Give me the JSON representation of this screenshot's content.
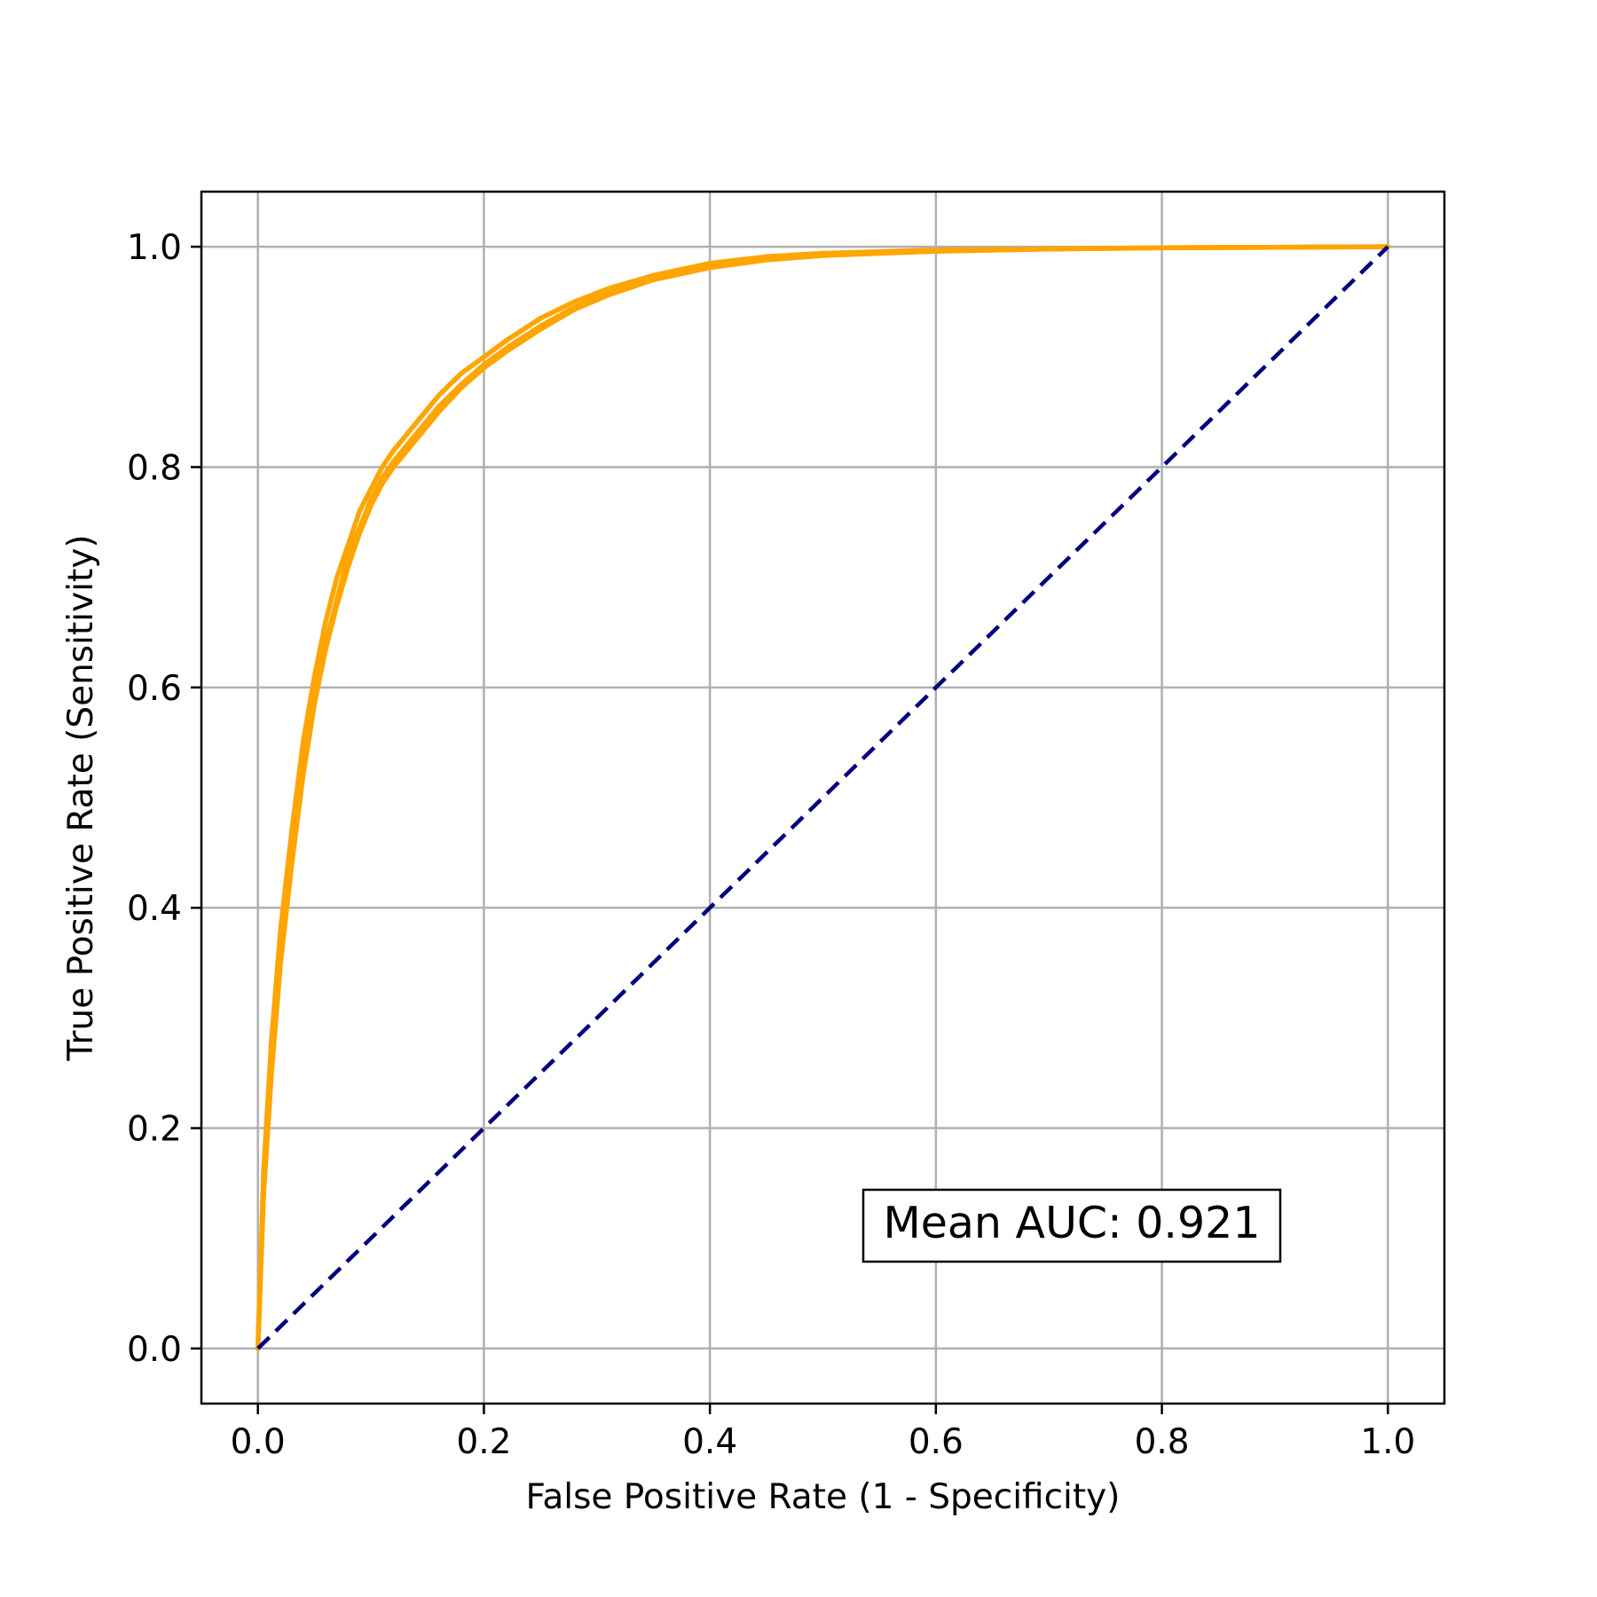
{
  "chart_data": {
    "type": "line",
    "title": "",
    "xlabel": "False Positive Rate (1 - Specificity)",
    "ylabel": "True Positive Rate (Sensitivity)",
    "xlim": [
      -0.05,
      1.05
    ],
    "ylim": [
      -0.05,
      1.05
    ],
    "xticks": [
      "0.0",
      "0.2",
      "0.4",
      "0.6",
      "0.8",
      "1.0"
    ],
    "yticks": [
      "0.0",
      "0.2",
      "0.4",
      "0.6",
      "0.8",
      "1.0"
    ],
    "grid": true,
    "legend": "none",
    "annotation": "Mean AUC: 0.921",
    "colors": {
      "roc": "#FFA500",
      "diagonal": "#000080",
      "grid": "#b0b0b0",
      "axes": "#000000"
    },
    "series": [
      {
        "style": "solid",
        "x": [
          0.0,
          0.005,
          0.012,
          0.02,
          0.03,
          0.04,
          0.05,
          0.06,
          0.07,
          0.08,
          0.09,
          0.1,
          0.11,
          0.12,
          0.14,
          0.16,
          0.18,
          0.2,
          0.22,
          0.25,
          0.28,
          0.31,
          0.35,
          0.4,
          0.45,
          0.5,
          0.6,
          0.7,
          0.8,
          0.9,
          1.0
        ],
        "y": [
          0.0,
          0.16,
          0.28,
          0.38,
          0.47,
          0.55,
          0.61,
          0.66,
          0.7,
          0.73,
          0.76,
          0.78,
          0.8,
          0.815,
          0.84,
          0.865,
          0.885,
          0.9,
          0.915,
          0.935,
          0.95,
          0.962,
          0.974,
          0.985,
          0.991,
          0.994,
          0.997,
          0.998,
          0.999,
          0.9995,
          1.0
        ]
      },
      {
        "style": "solid",
        "x": [
          0.0,
          0.005,
          0.012,
          0.02,
          0.03,
          0.04,
          0.05,
          0.06,
          0.07,
          0.08,
          0.09,
          0.1,
          0.11,
          0.12,
          0.14,
          0.16,
          0.18,
          0.2,
          0.22,
          0.25,
          0.28,
          0.31,
          0.35,
          0.4,
          0.45,
          0.5,
          0.6,
          0.7,
          0.8,
          0.9,
          1.0
        ],
        "y": [
          0.0,
          0.15,
          0.26,
          0.36,
          0.45,
          0.53,
          0.59,
          0.64,
          0.68,
          0.72,
          0.745,
          0.77,
          0.79,
          0.805,
          0.83,
          0.855,
          0.875,
          0.893,
          0.908,
          0.928,
          0.945,
          0.958,
          0.971,
          0.982,
          0.989,
          0.993,
          0.996,
          0.998,
          0.999,
          0.9995,
          1.0
        ]
      },
      {
        "style": "solid",
        "x": [
          0.0,
          0.005,
          0.012,
          0.02,
          0.03,
          0.04,
          0.05,
          0.06,
          0.07,
          0.08,
          0.09,
          0.1,
          0.11,
          0.12,
          0.14,
          0.16,
          0.18,
          0.2,
          0.22,
          0.25,
          0.28,
          0.31,
          0.35,
          0.4,
          0.45,
          0.5,
          0.6,
          0.7,
          0.8,
          0.9,
          1.0
        ],
        "y": [
          0.0,
          0.14,
          0.25,
          0.35,
          0.44,
          0.52,
          0.585,
          0.635,
          0.675,
          0.71,
          0.74,
          0.765,
          0.785,
          0.8,
          0.825,
          0.85,
          0.872,
          0.89,
          0.905,
          0.925,
          0.943,
          0.956,
          0.97,
          0.981,
          0.988,
          0.992,
          0.996,
          0.998,
          0.999,
          0.9995,
          1.0
        ]
      },
      {
        "style": "dashed",
        "x": [
          0.0,
          1.0
        ],
        "y": [
          0.0,
          1.0
        ]
      }
    ]
  }
}
